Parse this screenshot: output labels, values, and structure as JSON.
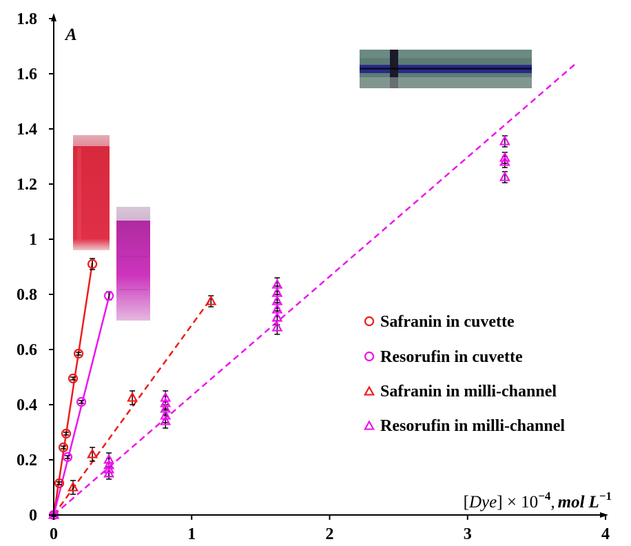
{
  "chart_data": {
    "type": "scatter",
    "title": "",
    "ylabel": "A",
    "xlabel": {
      "full": "[Dye] × 10^-4, mol L^-1",
      "open": "[",
      "dye": "Dye",
      "times": "] × 10",
      "exp": "−4",
      "comma": ",",
      "mol": "mol",
      "L": "L",
      "Lexp": "−1"
    },
    "xlim": [
      0,
      4
    ],
    "ylim": [
      0,
      1.8
    ],
    "x_ticks": [
      0,
      1,
      2,
      3,
      4
    ],
    "x_tick_labels": [
      "0",
      "1",
      "2",
      "3",
      "4"
    ],
    "y_ticks": [
      0,
      0.2,
      0.4,
      0.6,
      0.8,
      1,
      1.2,
      1.4,
      1.6,
      1.8
    ],
    "y_tick_labels": [
      "0",
      "0.2",
      "0.4",
      "0.6",
      "0.8",
      "1",
      "1.2",
      "1.4",
      "1.6",
      "1.8"
    ],
    "grid": false,
    "legend_position": "right",
    "colors": {
      "safranin": "#ee1c1c",
      "resorufin": "#ee14ee",
      "axis": "#000000"
    },
    "series": [
      {
        "name": "Safranin in cuvette",
        "marker": "circle",
        "color": "#ee1c1c",
        "fit": "solid",
        "fit_line": [
          [
            0,
            0
          ],
          [
            0.28,
            0.915
          ]
        ],
        "points": [
          {
            "x": 0,
            "y": 0,
            "err": 0.005
          },
          {
            "x": 0.04,
            "y": 0.115,
            "err": 0.005
          },
          {
            "x": 0.07,
            "y": 0.245,
            "err": 0.005
          },
          {
            "x": 0.09,
            "y": 0.295,
            "err": 0.005
          },
          {
            "x": 0.14,
            "y": 0.495,
            "err": 0.005
          },
          {
            "x": 0.18,
            "y": 0.585,
            "err": 0.005
          },
          {
            "x": 0.28,
            "y": 0.91,
            "err": 0.02
          }
        ]
      },
      {
        "name": "Resorufin in cuvette",
        "marker": "circle",
        "color": "#ee14ee",
        "fit": "solid",
        "fit_line": [
          [
            0,
            0
          ],
          [
            0.41,
            0.81
          ]
        ],
        "points": [
          {
            "x": 0,
            "y": 0,
            "err": 0.005
          },
          {
            "x": 0.1,
            "y": 0.21,
            "err": 0.005
          },
          {
            "x": 0.2,
            "y": 0.41,
            "err": 0.005
          },
          {
            "x": 0.4,
            "y": 0.795,
            "err": 0.015
          }
        ]
      },
      {
        "name": "Safranin in milli-channel",
        "marker": "triangle",
        "color": "#ee1c1c",
        "fit": "dashed",
        "fit_line": [
          [
            0,
            0
          ],
          [
            1.14,
            0.785
          ]
        ],
        "points": [
          {
            "x": 0,
            "y": 0,
            "err": 0.005
          },
          {
            "x": 0.14,
            "y": 0.1,
            "err": 0.025
          },
          {
            "x": 0.28,
            "y": 0.22,
            "err": 0.025
          },
          {
            "x": 0.57,
            "y": 0.425,
            "err": 0.025
          },
          {
            "x": 1.14,
            "y": 0.775,
            "err": 0.02
          }
        ]
      },
      {
        "name": "Resorufin in milli-channel",
        "marker": "triangle",
        "color": "#ee14ee",
        "fit": "dashed",
        "fit_line": [
          [
            0,
            0
          ],
          [
            3.78,
            1.635
          ]
        ],
        "points": [
          {
            "x": 0,
            "y": 0,
            "err": 0.005
          },
          {
            "x": 0.4,
            "y": 0.2,
            "err": 0.025
          },
          {
            "x": 0.4,
            "y": 0.18,
            "err": 0.025
          },
          {
            "x": 0.4,
            "y": 0.165,
            "err": 0.025
          },
          {
            "x": 0.4,
            "y": 0.15,
            "err": 0.02
          },
          {
            "x": 0.81,
            "y": 0.425,
            "err": 0.025
          },
          {
            "x": 0.81,
            "y": 0.405,
            "err": 0.025
          },
          {
            "x": 0.81,
            "y": 0.385,
            "err": 0.025
          },
          {
            "x": 0.81,
            "y": 0.36,
            "err": 0.025
          },
          {
            "x": 0.81,
            "y": 0.34,
            "err": 0.025
          },
          {
            "x": 1.62,
            "y": 0.835,
            "err": 0.025
          },
          {
            "x": 1.62,
            "y": 0.805,
            "err": 0.025
          },
          {
            "x": 1.62,
            "y": 0.775,
            "err": 0.025
          },
          {
            "x": 1.62,
            "y": 0.745,
            "err": 0.025
          },
          {
            "x": 1.62,
            "y": 0.715,
            "err": 0.025
          },
          {
            "x": 1.62,
            "y": 0.68,
            "err": 0.025
          },
          {
            "x": 3.27,
            "y": 1.355,
            "err": 0.02
          },
          {
            "x": 3.27,
            "y": 1.295,
            "err": 0.02
          },
          {
            "x": 3.27,
            "y": 1.28,
            "err": 0.02
          },
          {
            "x": 3.27,
            "y": 1.225,
            "err": 0.02
          }
        ]
      }
    ],
    "insets": [
      {
        "name": "safranin-cuvette-photo",
        "color_top": "#d8a0a8",
        "color_body": "#d8283c"
      },
      {
        "name": "resorufin-cuvette-photo",
        "color_top": "#d8c8d8",
        "color_body": "#c82cb4"
      },
      {
        "name": "milli-channel-device-photo",
        "color_board": "#5a7a72",
        "color_channel": "#3a2a9a"
      }
    ]
  }
}
